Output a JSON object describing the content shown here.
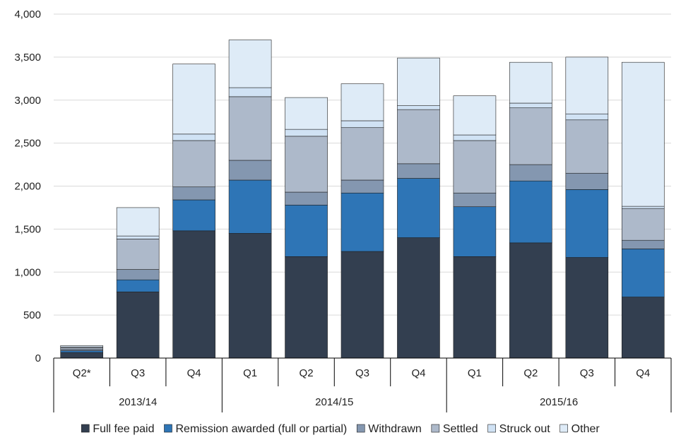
{
  "chart_data": {
    "type": "bar",
    "stacked": true,
    "categories": [
      "Q2*",
      "Q3",
      "Q4",
      "Q1",
      "Q2",
      "Q3",
      "Q4",
      "Q1",
      "Q2",
      "Q3",
      "Q4"
    ],
    "groups": [
      {
        "label": "2013/14",
        "count": 3
      },
      {
        "label": "2014/15",
        "count": 4
      },
      {
        "label": "2015/16",
        "count": 4
      }
    ],
    "series": [
      {
        "name": "Full fee paid",
        "color": "#333f50",
        "values": [
          65,
          770,
          1480,
          1450,
          1180,
          1240,
          1400,
          1180,
          1340,
          1170,
          710
        ]
      },
      {
        "name": "Remission awarded (full or partial)",
        "color": "#2e75b6",
        "values": [
          20,
          140,
          360,
          620,
          600,
          680,
          690,
          580,
          720,
          790,
          560
        ]
      },
      {
        "name": "Withdrawn",
        "color": "#8497b0",
        "values": [
          15,
          120,
          150,
          230,
          150,
          150,
          170,
          160,
          190,
          190,
          100
        ]
      },
      {
        "name": "Settled",
        "color": "#adb9ca",
        "values": [
          20,
          355,
          540,
          740,
          650,
          610,
          630,
          610,
          660,
          620,
          370
        ]
      },
      {
        "name": "Struck out",
        "color": "#d0e2f4",
        "values": [
          10,
          35,
          75,
          105,
          80,
          80,
          45,
          65,
          55,
          70,
          25
        ]
      },
      {
        "name": "Other",
        "color": "#deebf7",
        "values": [
          15,
          330,
          815,
          555,
          370,
          430,
          555,
          455,
          475,
          660,
          1675
        ]
      }
    ],
    "ylim": [
      0,
      4000
    ],
    "yticks": [
      0,
      500,
      1000,
      1500,
      2000,
      2500,
      3000,
      3500,
      4000
    ],
    "ytick_labels": [
      "0",
      "500",
      "1,000",
      "1,500",
      "2,000",
      "2,500",
      "3,000",
      "3,500",
      "4,000"
    ],
    "title": "",
    "xlabel": "",
    "ylabel": "",
    "legend_position": "bottom"
  }
}
